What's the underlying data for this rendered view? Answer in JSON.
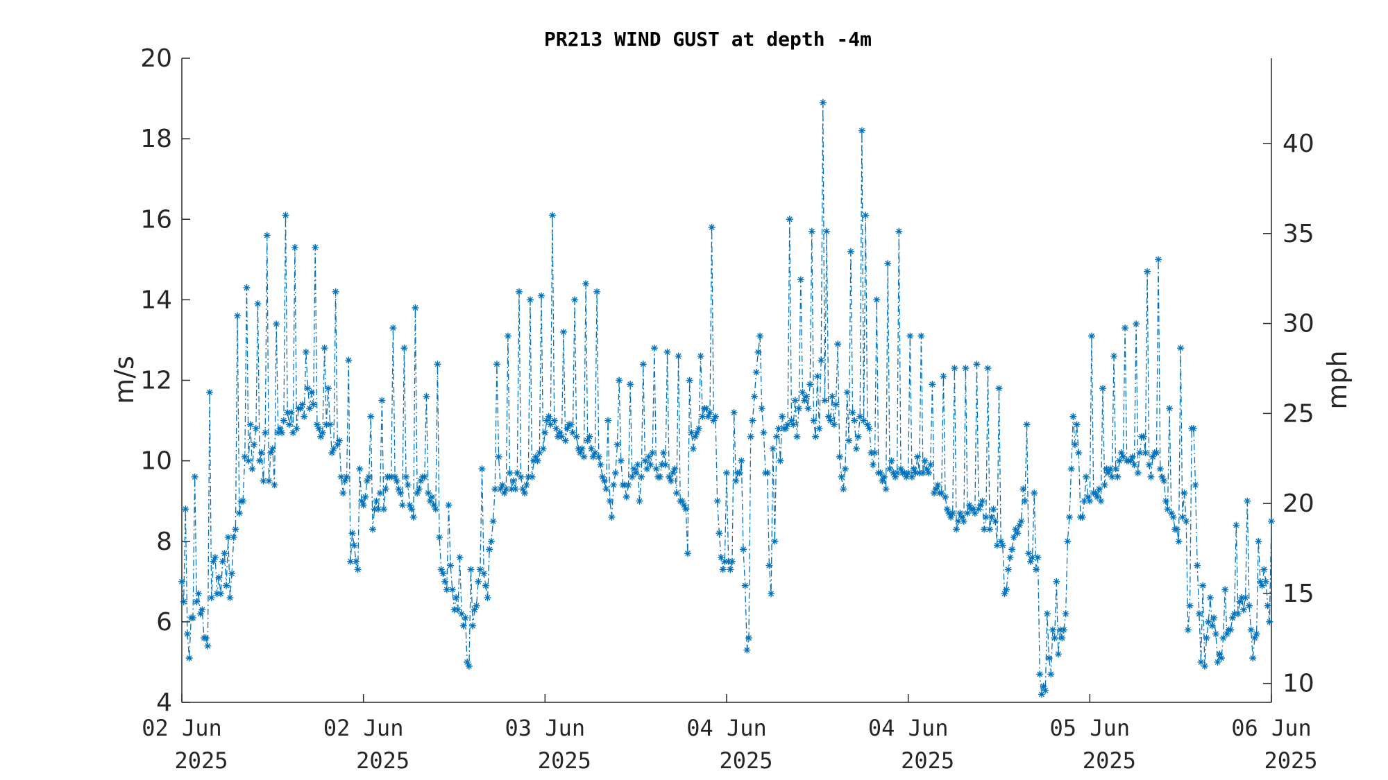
{
  "chart_data": {
    "type": "line",
    "title": "PR213 WIND GUST at depth -4m",
    "ylabel": "m/s",
    "ylabel_right": "mph",
    "ylim": [
      4,
      20
    ],
    "yticks": [
      4,
      6,
      8,
      10,
      12,
      14,
      16,
      18,
      20
    ],
    "ylim_right_mph": [
      8.948,
      44.739
    ],
    "yticks_right": [
      10,
      15,
      20,
      25,
      30,
      35,
      40
    ],
    "xlim_days": [
      0,
      4
    ],
    "xticks": [
      {
        "line1": "02 Jun",
        "line2": "2025"
      },
      {
        "line1": "02 Jun",
        "line2": "2025"
      },
      {
        "line1": "03 Jun",
        "line2": "2025"
      },
      {
        "line1": "04 Jun",
        "line2": "2025"
      },
      {
        "line1": "04 Jun",
        "line2": "2025"
      },
      {
        "line1": "05 Jun",
        "line2": "2025"
      },
      {
        "line1": "06 Jun",
        "line2": "2025"
      }
    ],
    "marker": "asterisk",
    "line_style": "dash-dot",
    "grid": false,
    "color": "#0072BD",
    "series": [
      {
        "x_start": "02 Jun 2025",
        "interval_minutes": 10,
        "values": [
          7.0,
          6.5,
          8.8,
          5.7,
          5.1,
          6.1,
          6.1,
          9.6,
          6.5,
          6.7,
          6.2,
          6.3,
          5.6,
          5.6,
          5.4,
          11.7,
          6.6,
          7.5,
          7.6,
          6.7,
          7.1,
          6.7,
          7.5,
          7.7,
          6.9,
          8.1,
          6.6,
          7.2,
          8.1,
          8.3,
          13.6,
          8.7,
          9.0,
          9.0,
          10.1,
          14.3,
          10.0,
          10.9,
          9.8,
          10.4,
          10.8,
          13.9,
          10.0,
          10.2,
          9.5,
          10.7,
          15.6,
          9.5,
          10.2,
          10.3,
          9.4,
          13.4,
          10.7,
          10.8,
          10.7,
          11.0,
          16.1,
          11.2,
          10.9,
          11.2,
          10.7,
          15.3,
          10.8,
          11.3,
          11.3,
          11.4,
          11.1,
          12.7,
          11.8,
          11.3,
          11.7,
          11.4,
          15.3,
          10.9,
          10.8,
          10.6,
          10.7,
          12.8,
          10.9,
          11.8,
          10.9,
          10.2,
          10.3,
          14.2,
          10.4,
          10.5,
          9.6,
          9.2,
          9.5,
          9.6,
          12.5,
          7.5,
          8.2,
          7.9,
          7.5,
          7.3,
          9.8,
          9.0,
          8.9,
          9.1,
          9.5,
          9.6,
          11.1,
          8.3,
          8.8,
          9.0,
          8.8,
          9.2,
          11.5,
          8.8,
          9.3,
          9.6,
          9.6,
          9.6,
          13.3,
          9.6,
          9.5,
          9.3,
          9.2,
          8.9,
          12.8,
          9.6,
          9.4,
          8.9,
          8.8,
          8.6,
          13.8,
          9.2,
          9.3,
          9.5,
          9.6,
          9.6,
          11.6,
          9.2,
          9.0,
          9.1,
          8.9,
          8.8,
          12.4,
          8.1,
          7.3,
          7.2,
          7.0,
          6.8,
          8.9,
          7.4,
          6.8,
          6.3,
          6.6,
          6.3,
          7.6,
          6.2,
          5.9,
          6.1,
          5.0,
          4.9,
          7.3,
          5.9,
          6.3,
          6.4,
          7.0,
          7.3,
          9.8,
          7.2,
          6.9,
          6.6,
          7.8,
          8.0,
          8.5,
          9.3,
          12.4,
          10.1,
          9.3,
          9.4,
          9.2,
          9.3,
          13.1,
          9.7,
          9.3,
          9.5,
          9.3,
          9.7,
          14.2,
          9.6,
          9.3,
          9.2,
          9.4,
          9.6,
          14.0,
          9.6,
          10.0,
          10.1,
          10.0,
          10.2,
          14.1,
          10.3,
          10.7,
          11.0,
          11.1,
          10.9,
          16.1,
          11.0,
          10.8,
          10.6,
          10.7,
          10.6,
          13.2,
          10.5,
          10.8,
          10.9,
          10.9,
          10.7,
          14.0,
          10.6,
          10.3,
          10.2,
          10.3,
          10.1,
          14.4,
          10.5,
          10.6,
          10.3,
          10.1,
          10.2,
          14.2,
          10.1,
          9.9,
          9.6,
          9.5,
          9.3,
          11.0,
          9.0,
          8.6,
          9.4,
          9.7,
          10.4,
          12.0,
          10.0,
          9.4,
          9.4,
          9.1,
          9.4,
          11.9,
          9.6,
          9.8,
          9.7,
          9.9,
          9.0,
          9.6,
          12.4,
          10.0,
          9.8,
          10.1,
          9.9,
          10.2,
          12.8,
          9.8,
          9.6,
          9.6,
          9.9,
          10.2,
          9.9,
          12.7,
          9.6,
          9.5,
          9.7,
          9.8,
          9.2,
          12.6,
          9.0,
          9.0,
          8.9,
          8.8,
          7.7,
          12.0,
          10.7,
          10.3,
          10.6,
          10.7,
          10.8,
          12.6,
          11.1,
          11.3,
          11.3,
          11.1,
          11.2,
          15.8,
          11.0,
          11.1,
          9.0,
          8.2,
          7.6,
          7.3,
          7.5,
          9.7,
          7.5,
          7.3,
          7.5,
          11.2,
          9.5,
          9.7,
          9.7,
          10.0,
          7.8,
          6.9,
          5.3,
          5.6,
          10.6,
          11.0,
          11.6,
          12.2,
          12.7,
          13.1,
          11.3,
          10.7,
          9.7,
          9.7,
          7.4,
          6.7,
          10.3,
          8.0,
          10.6,
          10.8,
          10.0,
          11.1,
          10.8,
          10.8,
          10.9,
          16.0,
          11.0,
          10.9,
          11.5,
          10.6,
          11.3,
          14.5,
          11.7,
          11.5,
          11.6,
          11.3,
          11.9,
          15.7,
          11.0,
          10.6,
          12.1,
          10.8,
          12.5,
          18.9,
          11.5,
          15.7,
          11.1,
          11.0,
          11.6,
          10.9,
          11.4,
          12.9,
          10.1,
          9.6,
          9.3,
          9.8,
          11.7,
          10.5,
          15.2,
          11.2,
          11.0,
          10.3,
          10.6,
          11.1,
          18.2,
          11.0,
          16.1,
          10.9,
          10.8,
          10.2,
          9.9,
          10.2,
          14.0,
          9.7,
          9.7,
          9.5,
          9.6,
          9.3,
          14.9,
          9.8,
          10.0,
          9.7,
          9.6,
          9.7,
          15.7,
          9.8,
          9.7,
          9.7,
          9.6,
          9.7,
          13.1,
          9.6,
          9.8,
          9.7,
          10.1,
          9.7,
          13.1,
          9.7,
          10.0,
          9.8,
          9.7,
          9.9,
          11.9,
          9.2,
          9.3,
          9.4,
          9.2,
          9.2,
          12.1,
          9.1,
          8.8,
          8.7,
          8.6,
          8.7,
          12.3,
          8.3,
          8.5,
          8.7,
          8.6,
          8.5,
          12.3,
          8.7,
          8.9,
          8.8,
          8.8,
          8.7,
          12.4,
          8.8,
          8.9,
          9.0,
          8.3,
          8.6,
          12.3,
          8.3,
          8.6,
          8.8,
          8.5,
          7.9,
          11.8,
          8.0,
          7.9,
          6.7,
          6.8,
          7.3,
          7.6,
          7.8,
          8.1,
          8.3,
          8.2,
          8.4,
          8.5,
          9.3,
          9.0,
          10.9,
          7.7,
          7.5,
          7.6,
          9.2,
          7.3,
          7.6,
          4.7,
          4.2,
          4.4,
          4.3,
          6.2,
          5.1,
          4.7,
          5.8,
          5.6,
          7.0,
          5.2,
          5.8,
          5.6,
          5.8,
          6.2,
          8.0,
          8.6,
          9.8,
          11.1,
          10.4,
          10.9,
          10.2,
          8.6,
          8.6,
          9.0,
          9.6,
          9.1,
          9.0,
          13.1,
          9.2,
          9.2,
          9.1,
          9.3,
          9.0,
          11.8,
          9.4,
          9.8,
          9.7,
          9.8,
          9.6,
          12.6,
          9.8,
          9.6,
          10.0,
          10.2,
          10.1,
          13.3,
          10.0,
          10.0,
          10.0,
          10.1,
          9.9,
          13.4,
          9.7,
          10.2,
          10.6,
          10.6,
          10.2,
          14.7,
          9.9,
          9.6,
          10.1,
          10.2,
          10.2,
          15.0,
          9.8,
          9.6,
          9.5,
          9.0,
          8.8,
          11.3,
          8.7,
          8.6,
          8.3,
          8.3,
          8.0,
          12.8,
          8.6,
          9.2,
          8.5,
          5.8,
          6.4,
          10.8,
          10.8,
          9.4,
          7.4,
          6.2,
          5.0,
          6.9,
          4.9,
          5.6,
          6.0,
          6.6,
          5.9,
          6.1,
          5.7,
          5.0,
          5.2,
          5.1,
          5.6,
          6.8,
          5.7,
          5.8,
          5.8,
          6.1,
          6.2,
          8.4,
          6.2,
          6.5,
          6.6,
          6.3,
          6.6,
          9.0,
          6.4,
          5.8,
          5.1,
          5.6,
          5.7,
          8.0,
          7.0,
          6.9,
          7.3,
          7.0,
          6.4,
          6.0,
          8.5
        ]
      }
    ]
  }
}
